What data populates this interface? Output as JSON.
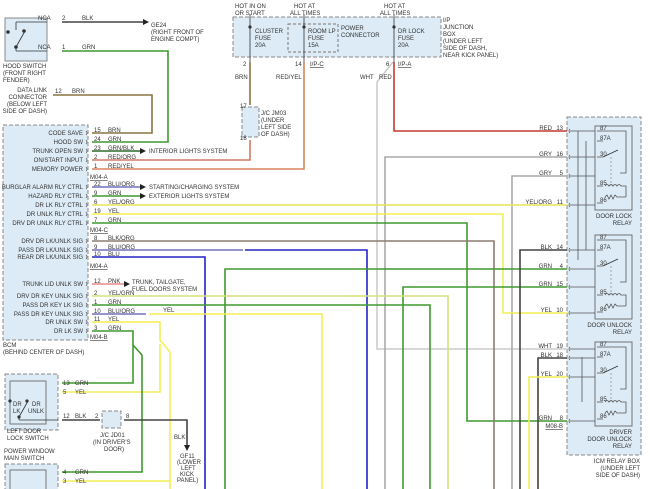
{
  "hood_switch": {
    "label": [
      "HOOD SWITCH",
      "(FRONT RIGHT",
      "FENDER)"
    ],
    "pins": [
      {
        "nca": "NCA",
        "pin": "2",
        "wire": "BLK"
      },
      {
        "nca": "NCA",
        "pin": "1",
        "wire": "GRN"
      }
    ]
  },
  "ground_ge24": [
    "GE24",
    "(RIGHT FRONT OF",
    "ENGINE COMPT)"
  ],
  "dlc": {
    "label": [
      "DATA LINK",
      "CONNECTOR",
      "(BELOW LEFT",
      "SIDE OF DASH)"
    ],
    "pin": "12",
    "wire": "BRN"
  },
  "fuse_box": {
    "feeds": [
      [
        "HOT IN ON",
        "OR START"
      ],
      [
        "HOT AT",
        "ALL TIMES"
      ],
      [
        "HOT AT",
        "ALL TIMES"
      ]
    ],
    "fuses": [
      [
        "CLUSTER",
        "FUSE",
        "20A"
      ],
      [
        "ROOM LP",
        "FUSE",
        "15A"
      ],
      [
        "DR LOCK",
        "FUSE",
        "20A"
      ]
    ],
    "power_connector": [
      "POWER",
      "CONNECTOR"
    ],
    "label": [
      "I/P",
      "JUNCTION",
      "BOX",
      "(UNDER LEFT",
      "SIDE OF DASH,",
      "NEAR KICK PANEL)"
    ],
    "pins": [
      "2",
      "14",
      "6"
    ],
    "connectors": [
      "I/P-C",
      "I/P-A"
    ],
    "wires": [
      "BRN",
      "RED/YEL",
      "WHT",
      "RED"
    ]
  },
  "jc_jm03": {
    "label": [
      "J/C JM03",
      "(UNDER",
      "LEFT SIDE",
      "OF DASH)"
    ],
    "pins": [
      "17",
      "18"
    ]
  },
  "bcm": {
    "label": [
      "BCM",
      "(BEHIND CENTER OF DASH)"
    ],
    "rows": [
      {
        "label": "CODE SAVE",
        "pin": "15",
        "wire": "BRN"
      },
      {
        "label": "HOOD SW",
        "pin": "24",
        "wire": "GRN"
      },
      {
        "label": "TRUNK OPEN SW",
        "pin": "23",
        "wire": "GRN/BLK"
      },
      {
        "label": "ON/START INPUT",
        "pin": "2",
        "wire": "RED/ORG"
      },
      {
        "label": "MEMORY POWER",
        "pin": "1",
        "wire": "RED/YEL"
      },
      {
        "label": "BURGLAR ALARM RLY CTRL",
        "pin": "22",
        "wire": "BLU/ORG"
      },
      {
        "label": "HAZARD RLY CTRL",
        "pin": "9",
        "wire": "GRN"
      },
      {
        "label": "DR LK RLY CTRL",
        "pin": "6",
        "wire": "YEL/ORG"
      },
      {
        "label": "DR UNLK RLY CTRL",
        "pin": "19",
        "wire": "YEL"
      },
      {
        "label": "DRV DR UNLK RLY CTRL",
        "pin": "7",
        "wire": "GRN"
      },
      {
        "label": "DRV DR LK/UNLK SIG",
        "pin": "8",
        "wire": "BLK/ORG"
      },
      {
        "label": "PASS DR LK/UNLK SIG",
        "pin": "9",
        "wire": "BLU/ORG"
      },
      {
        "label": "REAR DR LK/UNLK SIG",
        "pin": "10",
        "wire": "BLU"
      },
      {
        "label": "TRUNK LID UNLK SW",
        "pin": "12",
        "wire": "PNK"
      },
      {
        "label": "DRV DR KEY UNLK SIG",
        "pin": "2",
        "wire": "YEL/GRN"
      },
      {
        "label": "PASS DR KEY LK SIG",
        "pin": "1",
        "wire": "GRN"
      },
      {
        "label": "PASS DR KEY UNLK SIG",
        "pin": "10",
        "wire": "BLU/ORG"
      },
      {
        "label": "DR UNLK SW",
        "pin": "11",
        "wire": "YEL"
      },
      {
        "label": "DR LK SW",
        "pin": "3",
        "wire": "GRN"
      }
    ],
    "connectors": [
      "M04-A",
      "M04-C",
      "M04-A",
      "M04-B"
    ],
    "systems": [
      "INTERIOR LIGHTS SYSTEM",
      "STARTING/CHARGING SYSTEM",
      "EXTERIOR LIGHTS SYSTEM",
      [
        "TRUNK, TAILGATE,",
        "FUEL DOORS SYSTEM"
      ]
    ],
    "splice_wire": "YEL"
  },
  "left_door_switch": {
    "label": [
      "LEFT DOOR",
      "LOCK SWITCH"
    ],
    "dr_lk": [
      "DR",
      "LK"
    ],
    "dr_unlk": [
      "DR",
      "UNLK"
    ],
    "pins": [
      {
        "pin": "13",
        "wire": "GRN"
      },
      {
        "pin": "5",
        "wire": "YEL"
      },
      {
        "pin": "12",
        "wire": "BLK"
      }
    ]
  },
  "power_window_switch": {
    "label": [
      "POWER WINDOW",
      "MAIN SWITCH"
    ],
    "pins": [
      {
        "pin": "4",
        "wire": "GRN"
      },
      {
        "pin": "3",
        "wire": "YEL"
      }
    ]
  },
  "jc_jd01": {
    "label": [
      "J/C JD01",
      "(IN DRIVER'S",
      "DOOR)"
    ],
    "pins": [
      "2",
      "8"
    ],
    "wire": "BLK"
  },
  "ground_gf11": [
    "GF11",
    "(LOWER",
    "LEFT",
    "KICK",
    "PANEL)"
  ],
  "relay_box": {
    "label": [
      "ICM RELAY BOX",
      "(UNDER LEFT",
      "SIDE OF DASH)"
    ],
    "rows": [
      {
        "wire": "RED",
        "pin": "13"
      },
      {
        "wire": "GRY",
        "pin": "16"
      },
      {
        "wire": "GRY",
        "pin": "5"
      },
      {
        "wire": "YEL/ORG",
        "pin": "11"
      },
      {
        "wire": "BLK",
        "pin": "14"
      },
      {
        "wire": "GRN",
        "pin": "4"
      },
      {
        "wire": "GRN",
        "pin": "15"
      },
      {
        "wire": "YEL",
        "pin": "10"
      },
      {
        "wire": "WHT",
        "pin": "19"
      },
      {
        "wire": "BLK",
        "pin": "18"
      },
      {
        "wire": "YEL",
        "pin": "20"
      },
      {
        "wire": "GRN",
        "pin": "8"
      }
    ],
    "connector": "M08-B",
    "relay_pins": [
      "87",
      "87A",
      "30",
      "85",
      "86"
    ],
    "relays": [
      [
        "DOOR LOCK",
        "RELAY"
      ],
      [
        "DOOR UNLOCK",
        "RELAY"
      ],
      [
        "DRIVER",
        "DOOR UNLOCK",
        "RELAY"
      ]
    ]
  },
  "wire_colors": {
    "BRN": "#8a7440",
    "GRN": "#3f9a2e",
    "RED": "#c23a32",
    "RED/YEL": "#d9845a",
    "RED/ORG": "#d27a66",
    "YEL": "#f2ee55",
    "YEL/ORG": "#e9e35a",
    "YEL/GRN": "#d5e27a",
    "BLK": "#444444",
    "GRY": "#aaaaaa",
    "WHT": "#cccccc",
    "BLU": "#2323c4",
    "BLU/ORG": "#7070c2",
    "BLK/ORG": "#8c7c70",
    "PNK": "#e58a8a",
    "GRN/BLK": "#2f6a2a"
  }
}
